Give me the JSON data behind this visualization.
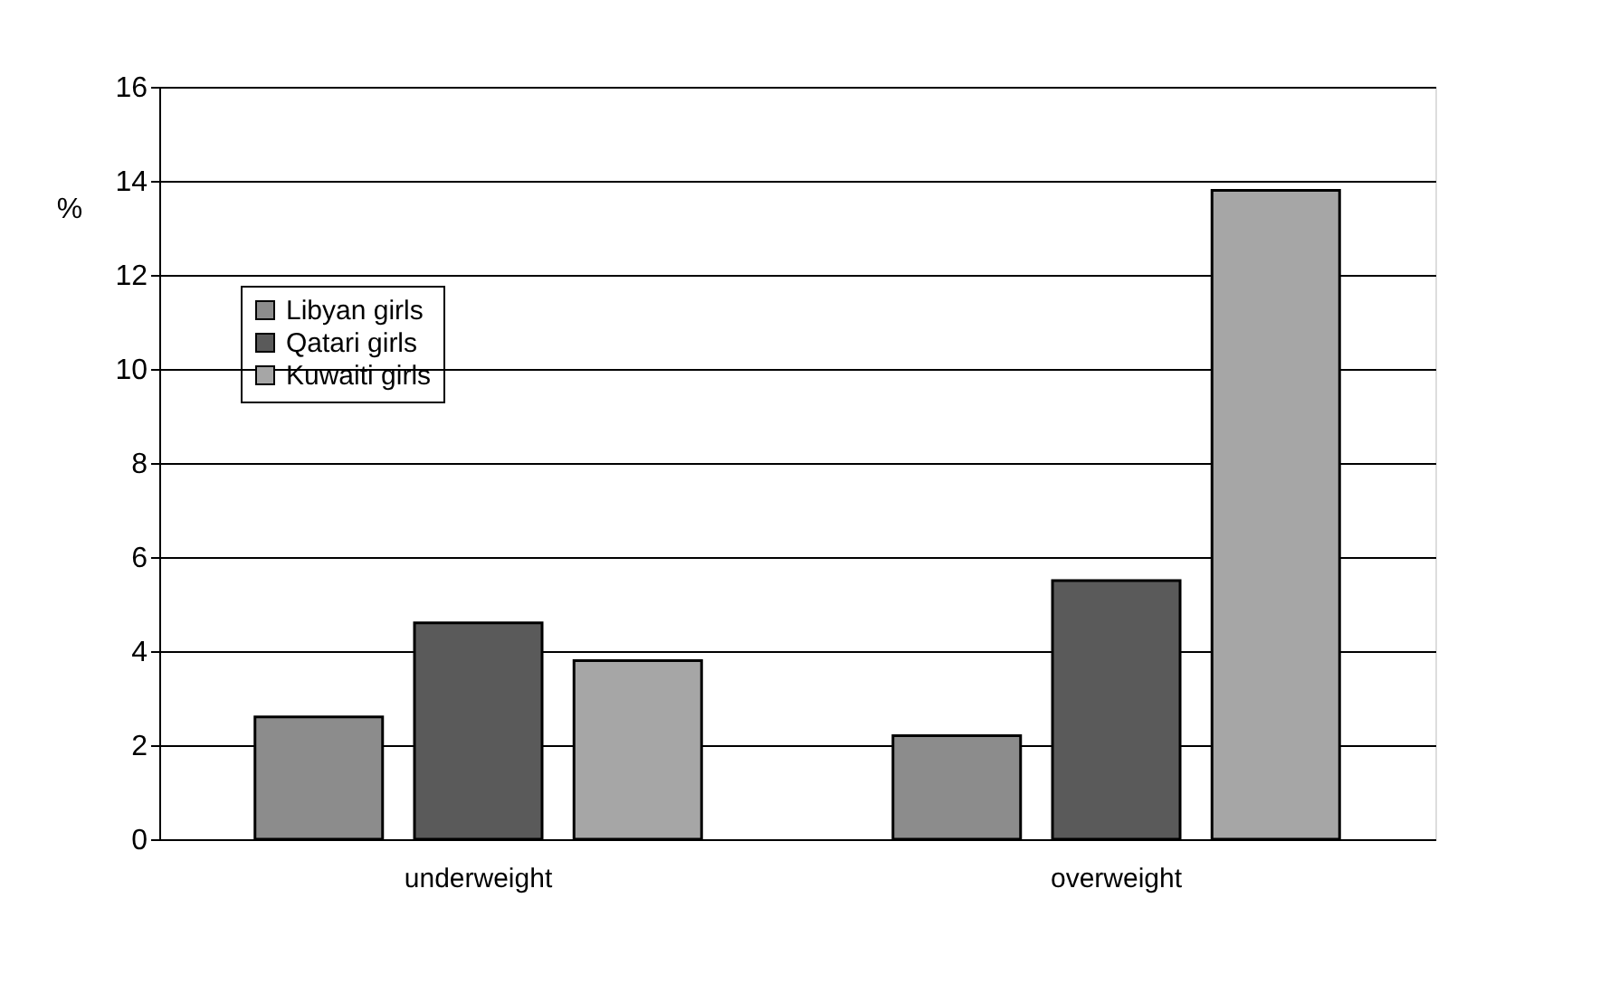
{
  "chart_data": {
    "type": "bar",
    "ylabel": "%",
    "categories": [
      "underweight",
      "overweight"
    ],
    "series": [
      {
        "name": "Libyan girls",
        "color": "#8c8c8c",
        "values": [
          2.6,
          2.2
        ]
      },
      {
        "name": "Qatari girls",
        "color": "#5a5a5a",
        "values": [
          4.6,
          5.5
        ]
      },
      {
        "name": "Kuwaiti girls",
        "color": "#a6a6a6",
        "values": [
          3.8,
          13.8
        ]
      }
    ],
    "ylim": [
      0,
      16
    ],
    "yticks": [
      0,
      2,
      4,
      6,
      8,
      10,
      12,
      14,
      16
    ],
    "grid": "y",
    "legend": "top left"
  }
}
